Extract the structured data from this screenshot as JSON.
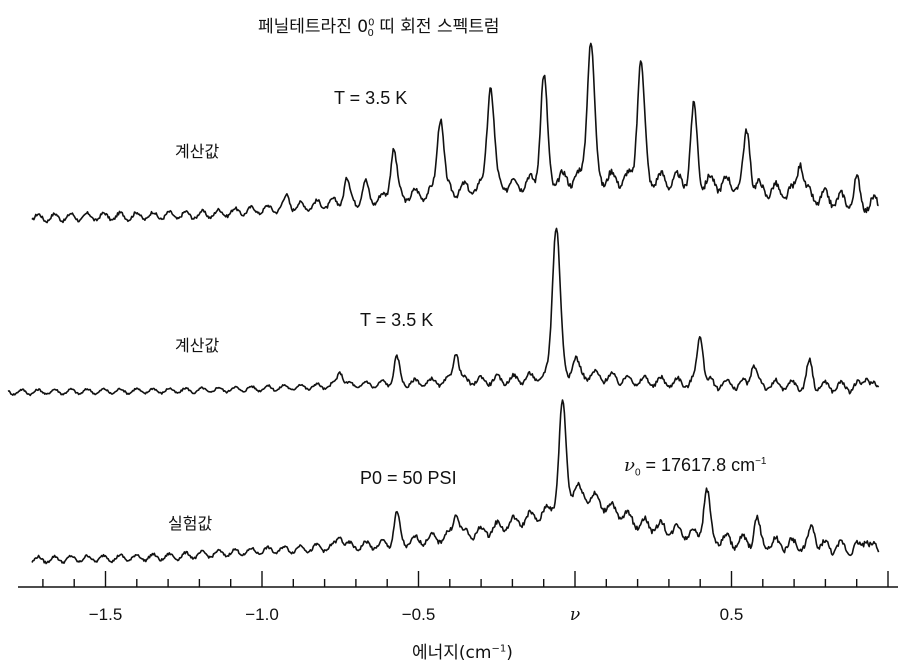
{
  "chart_data": {
    "type": "line",
    "title": {
      "pre": "페닐테트라진 0",
      "sup": "0",
      "sub": "0",
      "post": " 띠 회전 스펙트럼"
    },
    "xlabel": {
      "pre": "에너지(cm",
      "sup": "−1",
      "post": ")"
    },
    "xlim": [
      -1.75,
      1.0
    ],
    "x_ticks": [
      {
        "value": -1.5,
        "label": "−1.5"
      },
      {
        "value": -1.0,
        "label": "−1.0"
      },
      {
        "value": -0.5,
        "label": "−0.5"
      },
      {
        "value": 0.0,
        "label": "ν"
      },
      {
        "value": 0.5,
        "label": "0.5"
      }
    ],
    "minor_tick_step": 0.1,
    "series": [
      {
        "name": "계산값",
        "param": "T = 3.5 K",
        "noise_level": 0.12,
        "baseline": [
          [
            -1.75,
            0.0
          ],
          [
            -1.2,
            0.1
          ],
          [
            -0.9,
            0.35
          ],
          [
            -0.6,
            0.65
          ],
          [
            -0.3,
            1.0
          ],
          [
            0.0,
            1.3
          ],
          [
            0.25,
            1.25
          ],
          [
            0.5,
            1.1
          ],
          [
            0.75,
            0.7
          ],
          [
            0.95,
            0.45
          ]
        ],
        "peaks": [
          {
            "x": -0.92,
            "height": 0.35
          },
          {
            "x": -0.73,
            "height": 0.7
          },
          {
            "x": -0.67,
            "height": 0.5
          },
          {
            "x": -0.58,
            "height": 1.6
          },
          {
            "x": -0.43,
            "height": 2.5
          },
          {
            "x": -0.27,
            "height": 3.3
          },
          {
            "x": -0.1,
            "height": 3.3
          },
          {
            "x": 0.05,
            "height": 4.4
          },
          {
            "x": 0.21,
            "height": 3.8
          },
          {
            "x": 0.38,
            "height": 2.3
          },
          {
            "x": 0.55,
            "height": 1.8
          },
          {
            "x": 0.72,
            "height": 1.2
          },
          {
            "x": 0.9,
            "height": 0.6
          }
        ]
      },
      {
        "name": "계산값",
        "param": "T = 3.5 K",
        "noise_level": 0.08,
        "baseline": [
          [
            -1.75,
            0.0
          ],
          [
            -1.2,
            0.05
          ],
          [
            -0.9,
            0.15
          ],
          [
            -0.5,
            0.3
          ],
          [
            -0.2,
            0.4
          ],
          [
            0.0,
            0.6
          ],
          [
            0.2,
            0.35
          ],
          [
            0.5,
            0.25
          ],
          [
            0.95,
            0.15
          ]
        ],
        "peaks": [
          {
            "x": -0.75,
            "height": 0.5
          },
          {
            "x": -0.57,
            "height": 0.8
          },
          {
            "x": -0.38,
            "height": 1.0
          },
          {
            "x": -0.06,
            "height": 4.9
          },
          {
            "x": 0.0,
            "height": 0.5
          },
          {
            "x": 0.4,
            "height": 1.6
          },
          {
            "x": 0.57,
            "height": 0.7
          },
          {
            "x": 0.75,
            "height": 0.7
          },
          {
            "x": 0.93,
            "height": 0.4
          }
        ]
      },
      {
        "name": "실험값",
        "param": "P0 = 50 PSI",
        "noise_level": 0.1,
        "baseline": [
          [
            -1.75,
            0.0
          ],
          [
            -1.3,
            0.1
          ],
          [
            -1.0,
            0.3
          ],
          [
            -0.6,
            0.5
          ],
          [
            -0.3,
            0.9
          ],
          [
            -0.1,
            1.5
          ],
          [
            0.0,
            2.3
          ],
          [
            0.2,
            1.2
          ],
          [
            0.5,
            0.6
          ],
          [
            0.95,
            0.35
          ]
        ],
        "peaks": [
          {
            "x": -0.75,
            "height": 0.4
          },
          {
            "x": -0.57,
            "height": 0.9
          },
          {
            "x": -0.38,
            "height": 0.8
          },
          {
            "x": -0.04,
            "height": 3.0
          },
          {
            "x": 0.42,
            "height": 1.5
          },
          {
            "x": 0.58,
            "height": 0.7
          },
          {
            "x": 0.76,
            "height": 0.6
          },
          {
            "x": 0.93,
            "height": 0.4
          }
        ]
      }
    ],
    "annotation": {
      "pre": "ν",
      "sub": "0",
      "post": " = 17617.8 cm",
      "sup": "−1"
    },
    "grid": false,
    "legend": "none"
  },
  "style": {
    "line_color": "#111111",
    "background": "#ffffff"
  }
}
